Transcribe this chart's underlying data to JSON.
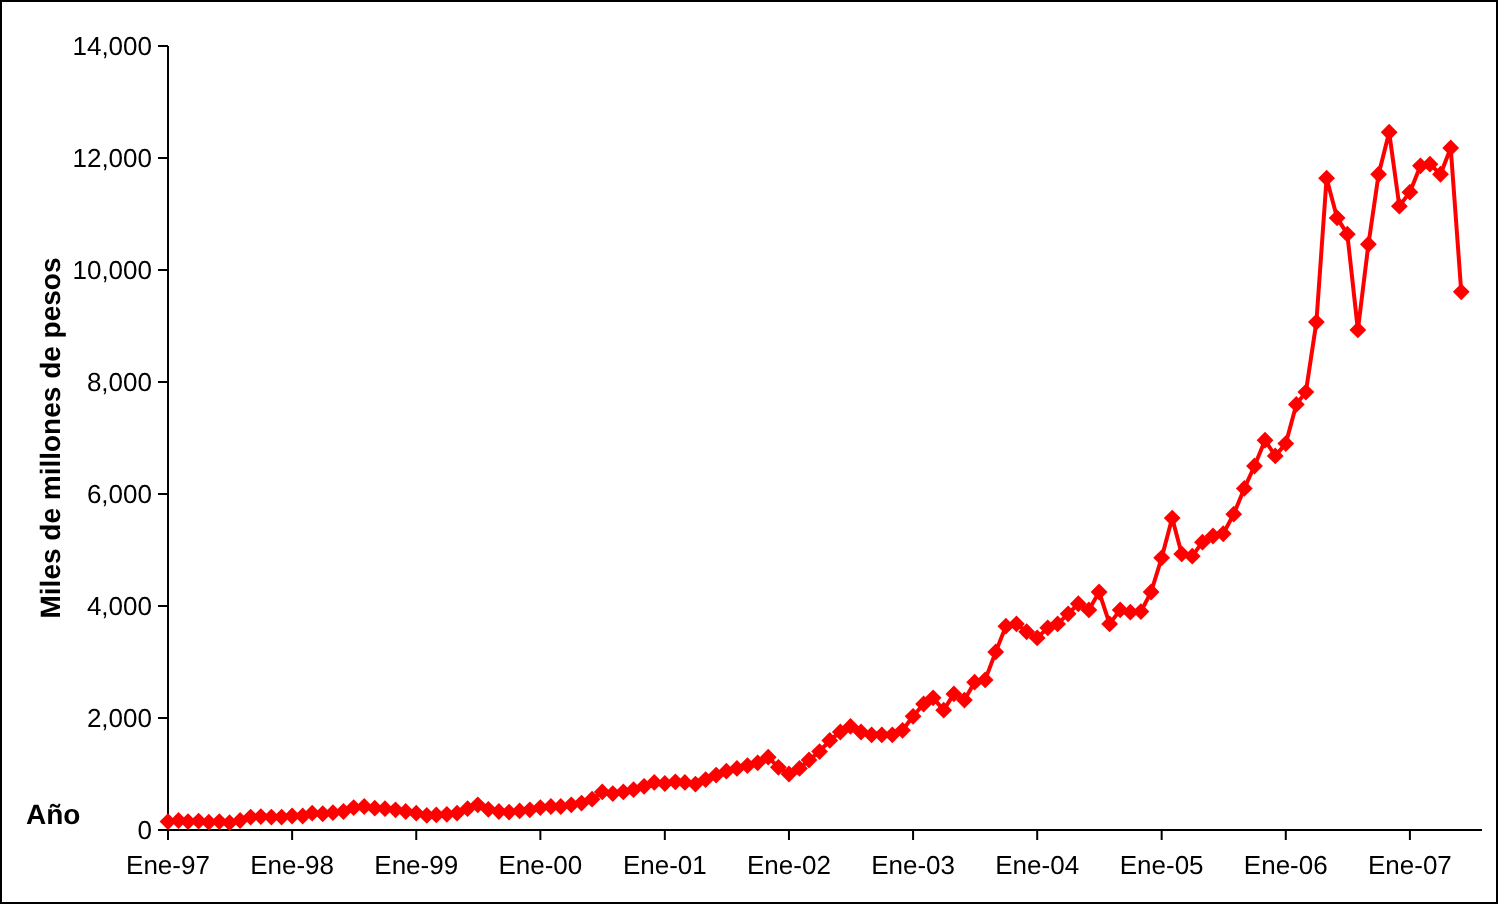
{
  "chart_data": {
    "type": "line",
    "xlabel": "Año",
    "ylabel": "Miles de millones de pesos",
    "x": [
      "1997-01",
      "1997-02",
      "1997-03",
      "1997-04",
      "1997-05",
      "1997-06",
      "1997-07",
      "1997-08",
      "1997-09",
      "1997-10",
      "1997-11",
      "1997-12",
      "1998-01",
      "1998-02",
      "1998-03",
      "1998-04",
      "1998-05",
      "1998-06",
      "1998-07",
      "1998-08",
      "1998-09",
      "1998-10",
      "1998-11",
      "1998-12",
      "1999-01",
      "1999-02",
      "1999-03",
      "1999-04",
      "1999-05",
      "1999-06",
      "1999-07",
      "1999-08",
      "1999-09",
      "1999-10",
      "1999-11",
      "1999-12",
      "2000-01",
      "2000-02",
      "2000-03",
      "2000-04",
      "2000-05",
      "2000-06",
      "2000-07",
      "2000-08",
      "2000-09",
      "2000-10",
      "2000-11",
      "2000-12",
      "2001-01",
      "2001-02",
      "2001-03",
      "2001-04",
      "2001-05",
      "2001-06",
      "2001-07",
      "2001-08",
      "2001-09",
      "2001-10",
      "2001-11",
      "2001-12",
      "2002-01",
      "2002-02",
      "2002-03",
      "2002-04",
      "2002-05",
      "2002-06",
      "2002-07",
      "2002-08",
      "2002-09",
      "2002-10",
      "2002-11",
      "2002-12",
      "2003-01",
      "2003-02",
      "2003-03",
      "2003-04",
      "2003-05",
      "2003-06",
      "2003-07",
      "2003-08",
      "2003-09",
      "2003-10",
      "2003-11",
      "2003-12",
      "2004-01",
      "2004-02",
      "2004-03",
      "2004-04",
      "2004-05",
      "2004-06",
      "2004-07",
      "2004-08",
      "2004-09",
      "2004-10",
      "2004-11",
      "2004-12",
      "2005-01",
      "2005-02",
      "2005-03",
      "2005-04",
      "2005-05",
      "2005-06",
      "2005-07",
      "2005-08",
      "2005-09",
      "2005-10",
      "2005-11",
      "2005-12",
      "2006-01",
      "2006-02",
      "2006-03",
      "2006-04",
      "2006-05",
      "2006-06",
      "2006-07",
      "2006-08",
      "2006-09",
      "2006-10",
      "2006-11",
      "2006-12",
      "2007-01",
      "2007-02",
      "2007-03",
      "2007-04",
      "2007-05",
      "2007-06"
    ],
    "series": [
      {
        "color": "#ff0000",
        "values": [
          150,
          170,
          150,
          160,
          140,
          150,
          130,
          170,
          230,
          240,
          230,
          230,
          250,
          250,
          300,
          290,
          310,
          330,
          400,
          420,
          390,
          380,
          360,
          330,
          300,
          260,
          270,
          280,
          300,
          380,
          450,
          370,
          330,
          320,
          340,
          360,
          400,
          420,
          420,
          450,
          480,
          550,
          680,
          650,
          680,
          720,
          780,
          850,
          830,
          860,
          850,
          820,
          900,
          980,
          1050,
          1100,
          1150,
          1200,
          1300,
          1120,
          1000,
          1100,
          1250,
          1400,
          1600,
          1750,
          1850,
          1750,
          1700,
          1700,
          1700,
          1780,
          2030,
          2250,
          2360,
          2140,
          2430,
          2320,
          2640,
          2680,
          3180,
          3640,
          3680,
          3540,
          3430,
          3610,
          3680,
          3860,
          4040,
          3930,
          4250,
          3680,
          3930,
          3890,
          3900,
          4250,
          4860,
          5570,
          4930,
          4890,
          5140,
          5250,
          5290,
          5640,
          6100,
          6500,
          6960,
          6680,
          6900,
          7600,
          7820,
          9070,
          11640,
          10930,
          10640,
          8930,
          10460,
          11710,
          12460,
          11140,
          11390,
          11860,
          11890,
          11710,
          12180,
          9610
        ]
      }
    ],
    "xlim": [
      "1997-01",
      "2007-08"
    ],
    "xticks": [
      {
        "value": "1997-01",
        "label": "Ene-97"
      },
      {
        "value": "1998-01",
        "label": "Ene-98"
      },
      {
        "value": "1999-01",
        "label": "Ene-99"
      },
      {
        "value": "2000-01",
        "label": "Ene-00"
      },
      {
        "value": "2001-01",
        "label": "Ene-01"
      },
      {
        "value": "2002-01",
        "label": "Ene-02"
      },
      {
        "value": "2003-01",
        "label": "Ene-03"
      },
      {
        "value": "2004-01",
        "label": "Ene-04"
      },
      {
        "value": "2005-01",
        "label": "Ene-05"
      },
      {
        "value": "2006-01",
        "label": "Ene-06"
      },
      {
        "value": "2007-01",
        "label": "Ene-07"
      }
    ],
    "ylim": [
      0,
      14000
    ],
    "yticks": [
      {
        "value": 0,
        "label": "0"
      },
      {
        "value": 2000,
        "label": "2,000"
      },
      {
        "value": 4000,
        "label": "4,000"
      },
      {
        "value": 6000,
        "label": "6,000"
      },
      {
        "value": 8000,
        "label": "8,000"
      },
      {
        "value": 10000,
        "label": "10,000"
      },
      {
        "value": 12000,
        "label": "12,000"
      },
      {
        "value": 14000,
        "label": "14,000"
      }
    ],
    "grid": false,
    "marker": "diamond",
    "line_style": "solid"
  }
}
